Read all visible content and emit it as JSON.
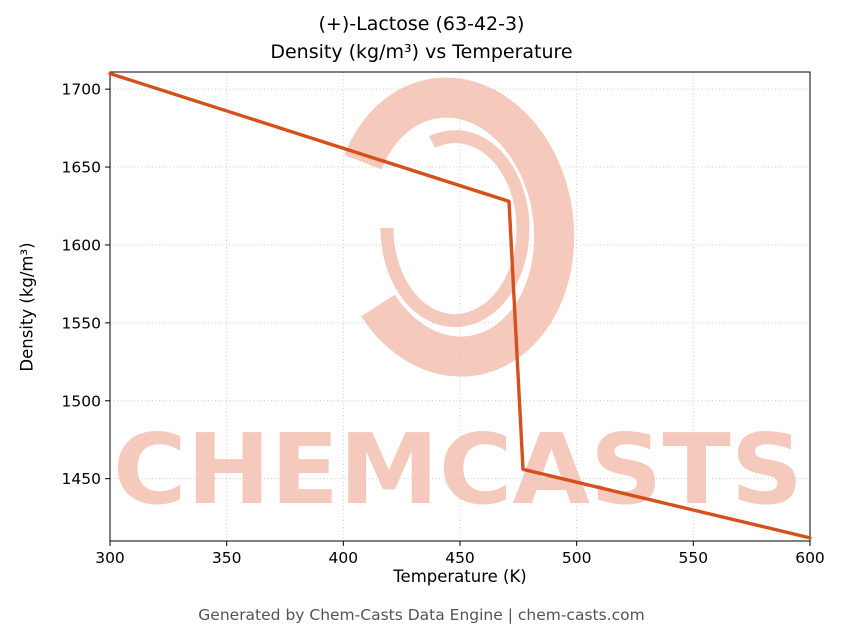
{
  "title": {
    "line1": "(+)-Lactose (63-42-3)",
    "line2": "Density (kg/m³) vs Temperature"
  },
  "footer": "Generated by Chem-Casts Data Engine | chem-casts.com",
  "watermark": {
    "text": "CHEMCASTS",
    "color": "#f5c5b6"
  },
  "chart_data": {
    "type": "line",
    "title": "(+)-Lactose (63-42-3) Density (kg/m³) vs Temperature",
    "xlabel": "Temperature (K)",
    "ylabel": "Density (kg/m³)",
    "xlim": [
      300,
      600
    ],
    "ylim": [
      1410,
      1711
    ],
    "x_ticks": [
      300,
      350,
      400,
      450,
      500,
      550,
      600
    ],
    "y_ticks": [
      1450,
      1500,
      1550,
      1600,
      1650,
      1700
    ],
    "grid": true,
    "grid_color": "#cccccc",
    "line_color": "#d4511c",
    "series": [
      {
        "name": "Density",
        "points": [
          [
            300,
            1710
          ],
          [
            471,
            1628
          ],
          [
            477,
            1456
          ],
          [
            600,
            1412
          ]
        ]
      }
    ]
  }
}
